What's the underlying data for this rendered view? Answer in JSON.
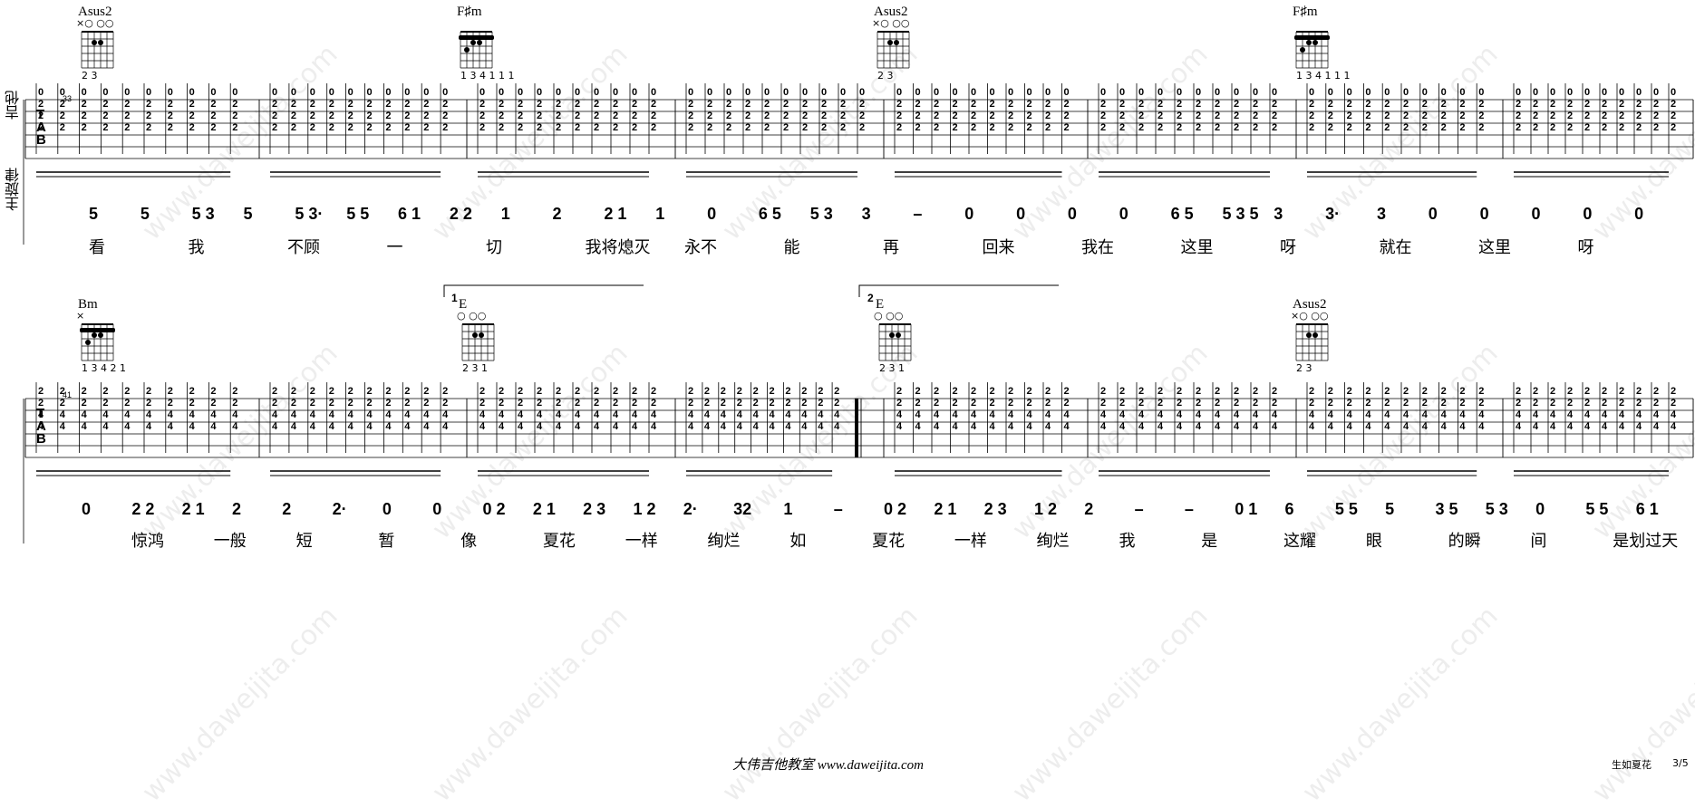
{
  "row1": {
    "measure_number": "33",
    "chords": [
      {
        "name": "Asus2",
        "fingering": "×○ ○○",
        "fingers": "2 3"
      },
      {
        "name": "F♯m",
        "fingering": "",
        "fingers": "1 3 4 1 1 1"
      },
      {
        "name": "Asus2",
        "fingering": "×○ ○○",
        "fingers": "2 3"
      },
      {
        "name": "F♯m",
        "fingering": "",
        "fingers": "1 3 4 1 1 1"
      }
    ],
    "melody": [
      "5",
      "5",
      "5 3",
      "5",
      "5 3·",
      "5 5",
      "6 1",
      "2 2",
      "1",
      "2",
      "2 1",
      "1",
      "0",
      "6 5",
      "5 3",
      "3",
      "–",
      "0",
      "0",
      "0",
      "0",
      "6 5",
      "5 3 5",
      "3",
      "3·",
      "3",
      "0",
      "0",
      "0",
      "0",
      "0"
    ],
    "lyrics": [
      "看",
      "我",
      "不顾",
      "一",
      "切",
      "我将熄灭",
      "永不",
      "能",
      "再",
      "回来",
      "我在",
      "这里",
      "呀",
      "就在",
      "这里",
      "呀"
    ]
  },
  "row2": {
    "measure_number": "41",
    "chords": [
      {
        "name": "Bm",
        "fingering": "×",
        "fingers": "1 3 4 2 1"
      },
      {
        "name": "E",
        "fingering": "○ ○○",
        "fingers": "2 3 1"
      },
      {
        "name": "E",
        "fingering": "○ ○○",
        "fingers": "2 3 1"
      },
      {
        "name": "Asus2",
        "fingering": "×○ ○○",
        "fingers": "2 3"
      }
    ],
    "volta1": "1",
    "volta2": "2",
    "melody": [
      "0",
      "2 2",
      "2 1",
      "2",
      "2",
      "2·",
      "0",
      "0",
      "0 2",
      "2 1",
      "2 3",
      "1 2",
      "2·",
      "32",
      "1",
      "–",
      "0 2",
      "2 1",
      "2 3",
      "1 2",
      "2",
      "–",
      "–",
      "0 1",
      "6",
      "5 5",
      "5",
      "3 5",
      "5 3",
      "0",
      "5 5",
      "6 1"
    ],
    "lyrics": [
      "惊鸿",
      "一般",
      "短",
      "暂",
      "像",
      "夏花",
      "一样",
      "绚烂",
      "如",
      "夏花",
      "一样",
      "绚烂",
      "我",
      "是",
      "这耀",
      "眼",
      "的瞬",
      "间",
      "是划过天"
    ]
  },
  "side_labels": {
    "guitar": "吉他",
    "melody": "主旋律"
  },
  "tab_letters": "TAB",
  "footer": {
    "text": "大伟吉他教室 www.daweijita.com",
    "song": "生如夏花",
    "page": "3/5"
  },
  "watermark": {
    "text": "www.daweijita.com",
    "brand": "大伟吉他教室"
  }
}
